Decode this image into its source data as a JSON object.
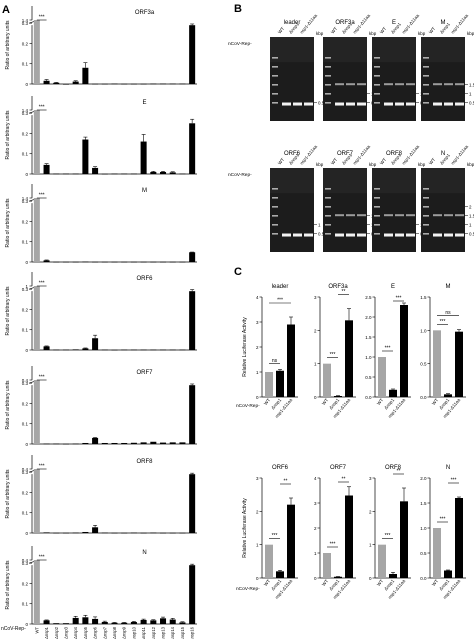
{
  "panels": {
    "A": "A",
    "B": "B",
    "C": "C"
  },
  "panel_a": {
    "ylabel": "Ratio of arbitrary units",
    "row_label": "nCoV-Rep-",
    "categories": [
      "WT",
      "Δnsp1",
      "Δnsp2",
      "Δnsp3",
      "Δnsp4",
      "Δnsp5",
      "Δnsp6",
      "Δnsp7",
      "Δnsp8",
      "Δnsp9",
      "Δnsp10",
      "Δnsp11",
      "Δnsp12",
      "Δnsp13",
      "Δnsp14",
      "Δnsp15",
      "Δnsp16"
    ],
    "sig": "***"
  },
  "chart_data": [
    {
      "type": "bar",
      "title": "ORF3a",
      "ylabel": "Ratio of arbitrary units",
      "ylim": [
        0,
        0.5
      ],
      "break": {
        "lo": 0.3,
        "hi": 1.4
      },
      "categories": [
        "WT",
        "Δnsp1",
        "Δnsp2",
        "Δnsp3",
        "Δnsp4",
        "Δnsp5",
        "Δnsp6",
        "Δnsp7",
        "Δnsp8",
        "Δnsp9",
        "Δnsp10",
        "Δnsp11",
        "Δnsp12",
        "Δnsp13",
        "Δnsp14",
        "Δnsp15",
        "Δnsp16"
      ],
      "values": [
        1.4,
        0.016,
        0.006,
        0,
        0.012,
        0.08,
        0.001,
        0.001,
        0.002,
        0.001,
        0.001,
        0.001,
        0.002,
        0.002,
        0.002,
        0.002,
        0.29
      ],
      "errors": [
        0,
        0.006,
        0.002,
        0,
        0.004,
        0.025,
        0,
        0,
        0,
        0,
        0,
        0,
        0,
        0,
        0,
        0,
        0.006
      ]
    },
    {
      "type": "bar",
      "title": "E",
      "ylabel": "Ratio of arbitrary units",
      "ylim": [
        0,
        0.5
      ],
      "break": {
        "lo": 0.3,
        "hi": 1.4
      },
      "categories": [
        "WT",
        "Δnsp1",
        "Δnsp2",
        "Δnsp3",
        "Δnsp4",
        "Δnsp5",
        "Δnsp6",
        "Δnsp7",
        "Δnsp8",
        "Δnsp9",
        "Δnsp10",
        "Δnsp11",
        "Δnsp12",
        "Δnsp13",
        "Δnsp14",
        "Δnsp15",
        "Δnsp16"
      ],
      "values": [
        1.4,
        0.045,
        0.002,
        0.002,
        0.002,
        0.17,
        0.03,
        0.001,
        0.002,
        0.002,
        0.002,
        0.16,
        0.01,
        0.01,
        0.008,
        0.002,
        0.25
      ],
      "errors": [
        0,
        0.006,
        0,
        0,
        0,
        0.012,
        0.006,
        0,
        0,
        0,
        0,
        0.035,
        0.003,
        0.003,
        0.003,
        0,
        0.02
      ]
    },
    {
      "type": "bar",
      "title": "M",
      "ylabel": "Ratio of arbitrary units",
      "ylim": [
        0,
        0.5
      ],
      "break": {
        "lo": 0.3,
        "hi": 1.4
      },
      "categories": [
        "WT",
        "Δnsp1",
        "Δnsp2",
        "Δnsp3",
        "Δnsp4",
        "Δnsp5",
        "Δnsp6",
        "Δnsp7",
        "Δnsp8",
        "Δnsp9",
        "Δnsp10",
        "Δnsp11",
        "Δnsp12",
        "Δnsp13",
        "Δnsp14",
        "Δnsp15",
        "Δnsp16"
      ],
      "values": [
        1.4,
        0.008,
        0.001,
        0.001,
        0.001,
        0.002,
        0.001,
        0.001,
        0.001,
        0.001,
        0.001,
        0.001,
        0.001,
        0.001,
        0.001,
        0.001,
        0.048
      ],
      "errors": [
        0,
        0.002,
        0,
        0,
        0,
        0,
        0,
        0,
        0,
        0,
        0,
        0,
        0,
        0,
        0,
        0,
        0.001
      ]
    },
    {
      "type": "bar",
      "title": "ORF6",
      "ylabel": "Ratio of arbitrary units",
      "ylim": [
        0,
        0.5
      ],
      "break": {
        "lo": 0.3,
        "hi": 1.0
      },
      "categories": [
        "WT",
        "Δnsp1",
        "Δnsp2",
        "Δnsp3",
        "Δnsp4",
        "Δnsp5",
        "Δnsp6",
        "Δnsp7",
        "Δnsp8",
        "Δnsp9",
        "Δnsp10",
        "Δnsp11",
        "Δnsp12",
        "Δnsp13",
        "Δnsp14",
        "Δnsp15",
        "Δnsp16"
      ],
      "values": [
        1.0,
        0.018,
        0.002,
        0.002,
        0.003,
        0.008,
        0.058,
        0.002,
        0.001,
        0.002,
        0.002,
        0.002,
        0.002,
        0.002,
        0.002,
        0.002,
        0.29
      ],
      "errors": [
        0,
        0.002,
        0,
        0,
        0,
        0.002,
        0.015,
        0,
        0,
        0,
        0,
        0,
        0,
        0,
        0,
        0,
        0.008
      ]
    },
    {
      "type": "bar",
      "title": "ORF7",
      "ylabel": "Ratio of arbitrary units",
      "ylim": [
        0,
        0.5
      ],
      "break": {
        "lo": 0.3,
        "hi": 0.4
      },
      "categories": [
        "WT",
        "Δnsp1",
        "Δnsp2",
        "Δnsp3",
        "Δnsp4",
        "Δnsp5",
        "Δnsp6",
        "Δnsp7",
        "Δnsp8",
        "Δnsp9",
        "Δnsp10",
        "Δnsp11",
        "Δnsp12",
        "Δnsp13",
        "Δnsp14",
        "Δnsp15",
        "Δnsp16"
      ],
      "values": [
        0.4,
        0.002,
        0.002,
        0.001,
        0.002,
        0.005,
        0.03,
        0.005,
        0.005,
        0.005,
        0.006,
        0.008,
        0.011,
        0.007,
        0.008,
        0.008,
        0.29
      ],
      "errors": [
        0,
        0,
        0,
        0,
        0,
        0,
        0.002,
        0,
        0,
        0,
        0,
        0,
        0,
        0,
        0,
        0,
        0.006
      ]
    },
    {
      "type": "bar",
      "title": "ORF8",
      "ylabel": "Ratio of arbitrary units",
      "ylim": [
        0,
        0.5
      ],
      "break": {
        "lo": 0.3,
        "hi": 0.4
      },
      "categories": [
        "WT",
        "Δnsp1",
        "Δnsp2",
        "Δnsp3",
        "Δnsp4",
        "Δnsp5",
        "Δnsp6",
        "Δnsp7",
        "Δnsp8",
        "Δnsp9",
        "Δnsp10",
        "Δnsp11",
        "Δnsp12",
        "Δnsp13",
        "Δnsp14",
        "Δnsp15",
        "Δnsp16"
      ],
      "values": [
        0.4,
        0.003,
        0.001,
        0.001,
        0.002,
        0.005,
        0.028,
        0.002,
        0.001,
        0.001,
        0.002,
        0.001,
        0.002,
        0.001,
        0.001,
        0.001,
        0.29
      ],
      "errors": [
        0,
        0,
        0,
        0,
        0,
        0,
        0.01,
        0,
        0,
        0,
        0,
        0,
        0,
        0,
        0,
        0,
        0.005
      ]
    },
    {
      "type": "bar",
      "title": "N",
      "ylabel": "Ratio of arbitrary units",
      "ylim": [
        0,
        0.5
      ],
      "break": {
        "lo": 0.3,
        "hi": 0.4
      },
      "categories": [
        "WT",
        "Δnsp1",
        "Δnsp2",
        "Δnsp3",
        "Δnsp4",
        "Δnsp5",
        "Δnsp6",
        "Δnsp7",
        "Δnsp8",
        "Δnsp9",
        "Δnsp10",
        "Δnsp11",
        "Δnsp12",
        "Δnsp13",
        "Δnsp14",
        "Δnsp15",
        "Δnsp16"
      ],
      "values": [
        0.4,
        0.018,
        0.004,
        0.004,
        0.03,
        0.033,
        0.025,
        0.01,
        0.006,
        0.006,
        0.01,
        0.02,
        0.018,
        0.028,
        0.022,
        0.008,
        0.29
      ],
      "errors": [
        0,
        0.002,
        0,
        0,
        0.008,
        0.01,
        0.01,
        0.004,
        0.002,
        0.002,
        0.003,
        0.004,
        0.003,
        0.006,
        0.006,
        0.003,
        0.005
      ]
    },
    {
      "type": "bar",
      "title": "leader",
      "ylabel": "Relative Luciferase Activity",
      "ylim": [
        0,
        4
      ],
      "yticks": [
        0,
        1,
        2,
        3,
        4
      ],
      "categories": [
        "WT",
        "Δnsp1",
        "nsp1-Δ11aa"
      ],
      "values": [
        1,
        1.05,
        2.9
      ],
      "errors": [
        0,
        0.05,
        0.3
      ],
      "sig": [
        {
          "a": 0,
          "b": 1,
          "label": "ns"
        },
        {
          "a": 0,
          "b": 2,
          "label": "***"
        }
      ]
    },
    {
      "type": "bar",
      "title": "ORF3a",
      "ylabel": "",
      "ylim": [
        0,
        3
      ],
      "yticks": [
        0,
        1,
        2,
        3
      ],
      "categories": [
        "WT",
        "Δnsp1",
        "nsp1-Δ11aa"
      ],
      "values": [
        1,
        0.03,
        2.3
      ],
      "errors": [
        0,
        0.01,
        0.35
      ],
      "sig": [
        {
          "a": 0,
          "b": 1,
          "label": "***"
        },
        {
          "a": 1,
          "b": 2,
          "label": "**"
        }
      ]
    },
    {
      "type": "bar",
      "title": "E",
      "ylabel": "",
      "ylim": [
        0,
        2.5
      ],
      "yticks": [
        0,
        0.5,
        1.0,
        1.5,
        2.0,
        2.5
      ],
      "categories": [
        "WT",
        "Δnsp1",
        "nsp1-Δ11aa"
      ],
      "values": [
        1,
        0.18,
        2.3
      ],
      "errors": [
        0,
        0.02,
        0.05
      ],
      "sig": [
        {
          "a": 0,
          "b": 1,
          "label": "***"
        },
        {
          "a": 1,
          "b": 2,
          "label": "***"
        }
      ]
    },
    {
      "type": "bar",
      "title": "M",
      "ylabel": "",
      "ylim": [
        0,
        1.5
      ],
      "yticks": [
        0,
        0.5,
        1.0,
        1.5
      ],
      "categories": [
        "WT",
        "Δnsp1",
        "nsp1-Δ11aa"
      ],
      "values": [
        1,
        0.04,
        0.98
      ],
      "errors": [
        0,
        0.01,
        0.03
      ],
      "sig": [
        {
          "a": 0,
          "b": 1,
          "label": "***"
        },
        {
          "a": 0,
          "b": 2,
          "label": "ns"
        }
      ]
    },
    {
      "type": "bar",
      "title": "ORF6",
      "ylabel": "Relative Luciferase Activity",
      "ylim": [
        0,
        3
      ],
      "yticks": [
        0,
        1,
        2,
        3
      ],
      "categories": [
        "WT",
        "Δnsp1",
        "nsp1-Δ11aa"
      ],
      "values": [
        1,
        0.2,
        2.2
      ],
      "errors": [
        0,
        0.03,
        0.2
      ],
      "sig": [
        {
          "a": 0,
          "b": 1,
          "label": "***"
        },
        {
          "a": 1,
          "b": 2,
          "label": "**"
        }
      ]
    },
    {
      "type": "bar",
      "title": "ORF7",
      "ylabel": "",
      "ylim": [
        0,
        4
      ],
      "yticks": [
        0,
        1,
        2,
        3,
        4
      ],
      "categories": [
        "WT",
        "Δnsp1",
        "nsp1-Δ11aa"
      ],
      "values": [
        1,
        0.05,
        3.3
      ],
      "errors": [
        0,
        0.01,
        0.35
      ],
      "sig": [
        {
          "a": 0,
          "b": 1,
          "label": "***"
        },
        {
          "a": 1,
          "b": 2,
          "label": "**"
        }
      ]
    },
    {
      "type": "bar",
      "title": "ORF8",
      "ylabel": "",
      "ylim": [
        0,
        3
      ],
      "yticks": [
        0,
        1,
        2,
        3
      ],
      "categories": [
        "WT",
        "Δnsp1",
        "nsp1-Δ11aa"
      ],
      "values": [
        1,
        0.12,
        2.3
      ],
      "errors": [
        0,
        0.05,
        0.4
      ],
      "sig": [
        {
          "a": 0,
          "b": 1,
          "label": "***"
        },
        {
          "a": 1,
          "b": 2,
          "label": "**"
        }
      ]
    },
    {
      "type": "bar",
      "title": "N",
      "ylabel": "",
      "ylim": [
        0,
        2.0
      ],
      "yticks": [
        0,
        0.5,
        1.0,
        1.5,
        2.0
      ],
      "categories": [
        "WT",
        "Δnsp1",
        "nsp1-Δ11aa"
      ],
      "values": [
        1,
        0.15,
        1.6
      ],
      "errors": [
        0,
        0.01,
        0.02
      ],
      "sig": [
        {
          "a": 0,
          "b": 1,
          "label": "***"
        },
        {
          "a": 1,
          "b": 2,
          "label": "***"
        }
      ]
    }
  ],
  "gels": {
    "row_label": "nCoV-Rep-",
    "lanes": [
      "WT",
      "Δnsp1",
      "nsp1-Δ11aa"
    ],
    "kbp": "kbp",
    "titles_row1": [
      "leader",
      "ORF3a",
      "E",
      "M"
    ],
    "titles_row2": [
      "ORF6",
      "ORF7",
      "ORF8",
      "N"
    ],
    "markers_row1": [
      [
        "0.5"
      ],
      [
        "1",
        "0.5"
      ],
      [
        "1",
        "0.5"
      ],
      [
        "1.5",
        "1",
        "0.5"
      ]
    ],
    "markers_row2": [
      [
        "1",
        "0.5"
      ],
      [
        "1.5",
        "1",
        "0.5"
      ],
      [
        "1",
        "0.5"
      ],
      [
        "2",
        "1.5",
        "1",
        "0.5"
      ]
    ]
  },
  "panel_c": {
    "row_label": "nCoV-Rep-",
    "lanes": [
      "WT",
      "Δnsp1",
      "nsp1-Δ11aa"
    ]
  }
}
